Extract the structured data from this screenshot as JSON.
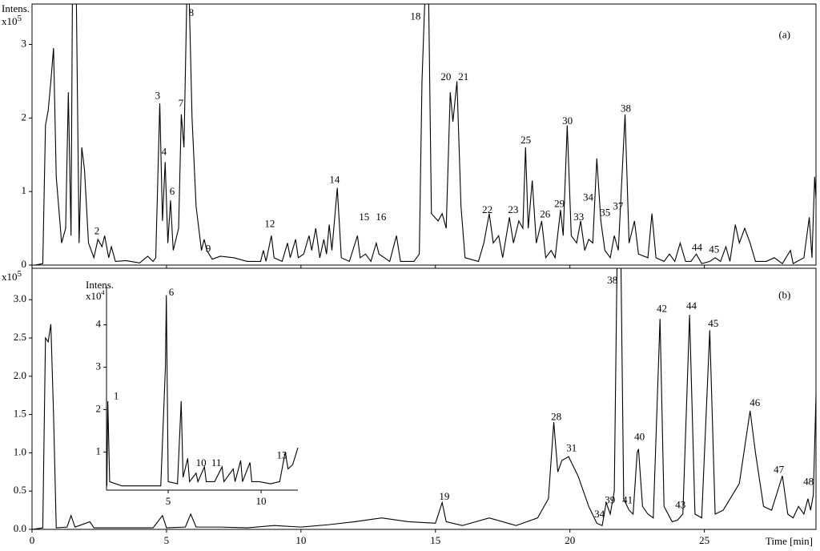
{
  "chart_data": [
    {
      "type": "line",
      "y_label": "Intens.",
      "y_multiplier": "x10",
      "y_exponent": "5",
      "color": "#000000",
      "xlim": [
        0,
        29.15
      ],
      "ylim": [
        0,
        3.55
      ],
      "yticks": [
        0,
        1,
        2,
        3
      ],
      "xticks": [
        0,
        5,
        10,
        15,
        20,
        25
      ],
      "xtick_labels": false,
      "x": [
        0.1,
        0.4,
        0.5,
        0.6,
        0.7,
        0.8,
        0.9,
        1.1,
        1.25,
        1.35,
        1.45,
        1.5,
        1.65,
        1.75,
        1.85,
        1.95,
        2.1,
        2.3,
        2.45,
        2.6,
        2.7,
        2.85,
        2.95,
        3.1,
        3.5,
        4.0,
        4.3,
        4.5,
        4.6,
        4.75,
        4.85,
        4.95,
        5.05,
        5.15,
        5.25,
        5.45,
        5.55,
        5.65,
        5.75,
        5.85,
        5.95,
        6.1,
        6.3,
        6.4,
        6.5,
        6.7,
        7.0,
        7.5,
        8.0,
        8.5,
        8.6,
        8.7,
        8.9,
        9.0,
        9.3,
        9.5,
        9.6,
        9.8,
        9.9,
        10.1,
        10.3,
        10.4,
        10.55,
        10.7,
        10.85,
        10.95,
        11.05,
        11.15,
        11.35,
        11.5,
        11.8,
        12.1,
        12.2,
        12.4,
        12.6,
        12.8,
        12.9,
        13.1,
        13.3,
        13.55,
        13.7,
        14.2,
        14.4,
        14.5,
        14.6,
        14.75,
        14.85,
        15.1,
        15.25,
        15.4,
        15.55,
        15.65,
        15.8,
        15.95,
        16.1,
        16.6,
        16.8,
        17.0,
        17.15,
        17.35,
        17.5,
        17.75,
        17.9,
        18.1,
        18.25,
        18.35,
        18.45,
        18.6,
        18.75,
        18.95,
        19.1,
        19.3,
        19.45,
        19.65,
        19.75,
        19.9,
        20.05,
        20.25,
        20.4,
        20.55,
        20.7,
        20.85,
        21.0,
        21.15,
        21.3,
        21.5,
        21.65,
        21.8,
        22.05,
        22.2,
        22.4,
        22.55,
        22.9,
        23.05,
        23.2,
        23.5,
        23.7,
        23.9,
        24.1,
        24.3,
        24.5,
        24.7,
        24.9,
        25.2,
        25.4,
        25.6,
        25.8,
        25.95,
        26.15,
        26.3,
        26.5,
        26.7,
        26.9,
        27.3,
        27.6,
        27.9,
        28.2,
        28.3,
        28.7,
        28.9,
        29.0,
        29.1,
        29.15
      ],
      "values": [
        0,
        0.02,
        1.9,
        2.1,
        2.5,
        2.95,
        1.2,
        0.3,
        0.5,
        2.35,
        0.4,
        3.55,
        3.55,
        0.3,
        1.6,
        1.3,
        0.3,
        0.1,
        0.35,
        0.25,
        0.4,
        0.1,
        0.25,
        0.05,
        0.06,
        0.03,
        0.12,
        0.05,
        0.1,
        2.2,
        0.6,
        1.4,
        0.3,
        0.88,
        0.2,
        0.5,
        2.05,
        1.6,
        3.55,
        3.55,
        2.0,
        0.8,
        0.2,
        0.35,
        0.2,
        0.08,
        0.12,
        0.1,
        0.05,
        0.05,
        0.2,
        0.05,
        0.4,
        0.1,
        0.05,
        0.3,
        0.1,
        0.35,
        0.1,
        0.15,
        0.4,
        0.2,
        0.5,
        0.1,
        0.35,
        0.15,
        0.55,
        0.2,
        1.05,
        0.1,
        0.05,
        0.4,
        0.1,
        0.15,
        0.05,
        0.3,
        0.15,
        0.1,
        0.05,
        0.4,
        0.05,
        0.05,
        0.15,
        2.5,
        3.55,
        3.55,
        0.7,
        0.6,
        0.7,
        0.5,
        2.35,
        1.95,
        2.5,
        0.8,
        0.1,
        0.05,
        0.3,
        0.7,
        0.3,
        0.4,
        0.1,
        0.65,
        0.3,
        0.6,
        0.5,
        1.6,
        0.5,
        1.15,
        0.3,
        0.6,
        0.1,
        0.2,
        0.1,
        0.75,
        0.4,
        1.9,
        0.4,
        0.3,
        0.6,
        0.2,
        0.35,
        0.3,
        1.45,
        0.6,
        0.2,
        0.1,
        0.4,
        0.2,
        2.05,
        0.3,
        0.6,
        0.15,
        0.1,
        0.7,
        0.1,
        0.05,
        0.15,
        0.05,
        0.3,
        0.05,
        0.05,
        0.15,
        0.02,
        0.05,
        0.1,
        0.05,
        0.25,
        0.05,
        0.55,
        0.3,
        0.5,
        0.3,
        0.05,
        0.05,
        0.1,
        0.02,
        0.2,
        0.02,
        0.1,
        0.65,
        0.1,
        1.2,
        0.9
      ],
      "annotations": [
        {
          "text": "2",
          "x": 2.41,
          "y": 0.45
        },
        {
          "text": "3",
          "x": 4.67,
          "y": 2.29
        },
        {
          "text": "4",
          "x": 4.91,
          "y": 1.53
        },
        {
          "text": "6",
          "x": 5.21,
          "y": 0.99
        },
        {
          "text": "7",
          "x": 5.54,
          "y": 2.19
        },
        {
          "text": "8",
          "x": 5.92,
          "y": 3.42
        },
        {
          "text": "9",
          "x": 6.55,
          "y": 0.21
        },
        {
          "text": "12",
          "x": 8.84,
          "y": 0.55
        },
        {
          "text": "14",
          "x": 11.25,
          "y": 1.15
        },
        {
          "text": "15",
          "x": 12.35,
          "y": 0.64
        },
        {
          "text": "16",
          "x": 12.98,
          "y": 0.64
        },
        {
          "text": "18",
          "x": 14.26,
          "y": 3.37
        },
        {
          "text": "20",
          "x": 15.39,
          "y": 2.55
        },
        {
          "text": "21",
          "x": 16.04,
          "y": 2.55
        },
        {
          "text": "22",
          "x": 16.93,
          "y": 0.74
        },
        {
          "text": "23",
          "x": 17.89,
          "y": 0.74
        },
        {
          "text": "25",
          "x": 18.36,
          "y": 1.69
        },
        {
          "text": "26",
          "x": 19.08,
          "y": 0.68
        },
        {
          "text": "29",
          "x": 19.61,
          "y": 0.82
        },
        {
          "text": "30",
          "x": 19.91,
          "y": 1.95
        },
        {
          "text": "33",
          "x": 20.33,
          "y": 0.64
        },
        {
          "text": "34",
          "x": 20.68,
          "y": 0.91
        },
        {
          "text": "35",
          "x": 21.31,
          "y": 0.7
        },
        {
          "text": "37",
          "x": 21.79,
          "y": 0.79
        },
        {
          "text": "38",
          "x": 22.08,
          "y": 2.12
        },
        {
          "text": "44",
          "x": 24.73,
          "y": 0.23
        },
        {
          "text": "45",
          "x": 25.36,
          "y": 0.2
        },
        {
          "text": "(a)",
          "x": 27.98,
          "y": 3.12
        }
      ]
    },
    {
      "type": "line",
      "x_label": "Time [min]",
      "y_multiplier": "x10",
      "y_exponent": "5",
      "color": "#000000",
      "xlim": [
        0,
        29.15
      ],
      "ylim": [
        0,
        3.41
      ],
      "yticks": [
        {
          "value": 0,
          "label": "0.0"
        },
        {
          "value": 0.5,
          "label": "0.5"
        },
        {
          "value": 1,
          "label": "1.0"
        },
        {
          "value": 1.5,
          "label": "1.5"
        },
        {
          "value": 2,
          "label": "2.0"
        },
        {
          "value": 2.5,
          "label": "2.5"
        },
        {
          "value": 3,
          "label": "3.0"
        }
      ],
      "xticks": [
        0,
        5,
        10,
        15,
        20,
        25
      ],
      "x": [
        0,
        0.4,
        0.5,
        0.6,
        0.7,
        0.8,
        0.9,
        1.3,
        1.45,
        1.6,
        2.15,
        2.3,
        4.5,
        4.85,
        5.0,
        5.7,
        5.9,
        6.1,
        7,
        8,
        9,
        10,
        11,
        12,
        13,
        14,
        15,
        15.25,
        15.4,
        16,
        17,
        18,
        18.8,
        19.2,
        19.4,
        19.55,
        19.7,
        19.95,
        20.3,
        20.7,
        21.0,
        21.2,
        21.35,
        21.5,
        21.65,
        21.75,
        21.9,
        22.0,
        22.2,
        22.35,
        22.5,
        22.55,
        22.7,
        22.9,
        23.1,
        23.35,
        23.5,
        23.8,
        24.0,
        24.2,
        24.45,
        24.65,
        24.9,
        25.2,
        25.4,
        25.7,
        26.3,
        26.7,
        26.9,
        27.2,
        27.5,
        27.9,
        28.1,
        28.3,
        28.5,
        28.7,
        28.85,
        28.95,
        29.05,
        29.15
      ],
      "values": [
        0,
        0.02,
        2.5,
        2.45,
        2.68,
        1.5,
        0.02,
        0.03,
        0.18,
        0.03,
        0.1,
        0.02,
        0.02,
        0.18,
        0.02,
        0.03,
        0.2,
        0.03,
        0.03,
        0.02,
        0.05,
        0.03,
        0.06,
        0.1,
        0.15,
        0.1,
        0.08,
        0.35,
        0.1,
        0.05,
        0.15,
        0.05,
        0.15,
        0.4,
        1.4,
        0.75,
        0.9,
        0.95,
        0.7,
        0.3,
        0.08,
        0.05,
        0.35,
        0.2,
        0.5,
        3.41,
        3.41,
        0.4,
        0.25,
        0.2,
        1.0,
        1.05,
        0.3,
        0.2,
        0.15,
        2.75,
        0.3,
        0.1,
        0.12,
        0.2,
        2.8,
        0.2,
        0.15,
        2.6,
        0.2,
        0.25,
        0.6,
        1.55,
        1.0,
        0.3,
        0.25,
        0.7,
        0.2,
        0.15,
        0.3,
        0.2,
        0.4,
        0.25,
        0.45,
        1.75
      ],
      "annotations": [
        {
          "text": "38",
          "x": 21.58,
          "y": 3.24
        },
        {
          "text": "42",
          "x": 23.42,
          "y": 2.87
        },
        {
          "text": "44",
          "x": 24.52,
          "y": 2.91
        },
        {
          "text": "45",
          "x": 25.33,
          "y": 2.68
        },
        {
          "text": "46",
          "x": 26.88,
          "y": 1.64
        },
        {
          "text": "40",
          "x": 22.59,
          "y": 1.2
        },
        {
          "text": "28",
          "x": 19.49,
          "y": 1.46
        },
        {
          "text": "31",
          "x": 20.06,
          "y": 1.05
        },
        {
          "text": "47",
          "x": 27.77,
          "y": 0.77
        },
        {
          "text": "48",
          "x": 28.87,
          "y": 0.61
        },
        {
          "text": "19",
          "x": 15.33,
          "y": 0.42
        },
        {
          "text": "34",
          "x": 21.1,
          "y": 0.19
        },
        {
          "text": "39",
          "x": 21.49,
          "y": 0.37
        },
        {
          "text": "41",
          "x": 22.14,
          "y": 0.37
        },
        {
          "text": "43",
          "x": 24.11,
          "y": 0.31
        },
        {
          "text": "(b)",
          "x": 27.98,
          "y": 3.05
        }
      ]
    },
    {
      "type": "line",
      "y_label": "Intens.",
      "y_multiplier": "x10",
      "y_exponent": "4",
      "color": "#000000",
      "xlim": [
        1.68,
        11.98
      ],
      "ylim": [
        0.1,
        4.9
      ],
      "yticks": [
        1,
        2,
        3,
        4
      ],
      "xticks": [
        5,
        10
      ],
      "x": [
        1.7,
        1.75,
        1.85,
        2.5,
        4.6,
        4.85,
        4.9,
        5.0,
        5.5,
        5.7,
        5.8,
        6.05,
        6.15,
        6.5,
        6.6,
        6.95,
        7.05,
        7.5,
        7.9,
        8.0,
        8.5,
        8.6,
        8.9,
        9.0,
        9.4,
        9.5,
        9.9,
        10.5,
        11.0,
        11.3,
        11.45,
        11.7,
        11.98
      ],
      "values": [
        0.2,
        2.2,
        0.3,
        0.2,
        0.2,
        3.0,
        4.7,
        0.3,
        0.25,
        2.2,
        0.4,
        0.85,
        0.3,
        0.5,
        0.3,
        0.65,
        0.3,
        0.3,
        0.65,
        0.3,
        0.6,
        0.3,
        0.8,
        0.3,
        0.75,
        0.3,
        0.3,
        0.25,
        0.3,
        1.0,
        0.6,
        0.7,
        1.1
      ],
      "annotations": [
        {
          "text": "1",
          "x": 2.2,
          "y": 2.3
        },
        {
          "text": "6",
          "x": 5.17,
          "y": 4.75
        },
        {
          "text": "10",
          "x": 6.77,
          "y": 0.72
        },
        {
          "text": "11",
          "x": 7.59,
          "y": 0.72
        },
        {
          "text": "13",
          "x": 11.12,
          "y": 0.9
        }
      ]
    }
  ]
}
